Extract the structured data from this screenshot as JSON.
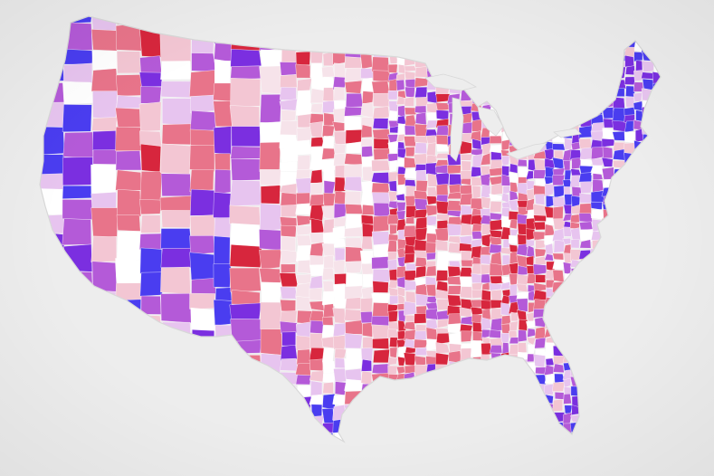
{
  "map": {
    "region": "contiguous-united-states",
    "unit": "county",
    "background_color": "#ededed",
    "border_color": "#ffffff",
    "scale": {
      "type": "diverging",
      "colors": [
        "#d7263d",
        "#e8748a",
        "#f3c6d3",
        "#ffffff",
        "#e7c4ef",
        "#b45ad8",
        "#7b2fe0",
        "#4a3df0"
      ]
    }
  }
}
